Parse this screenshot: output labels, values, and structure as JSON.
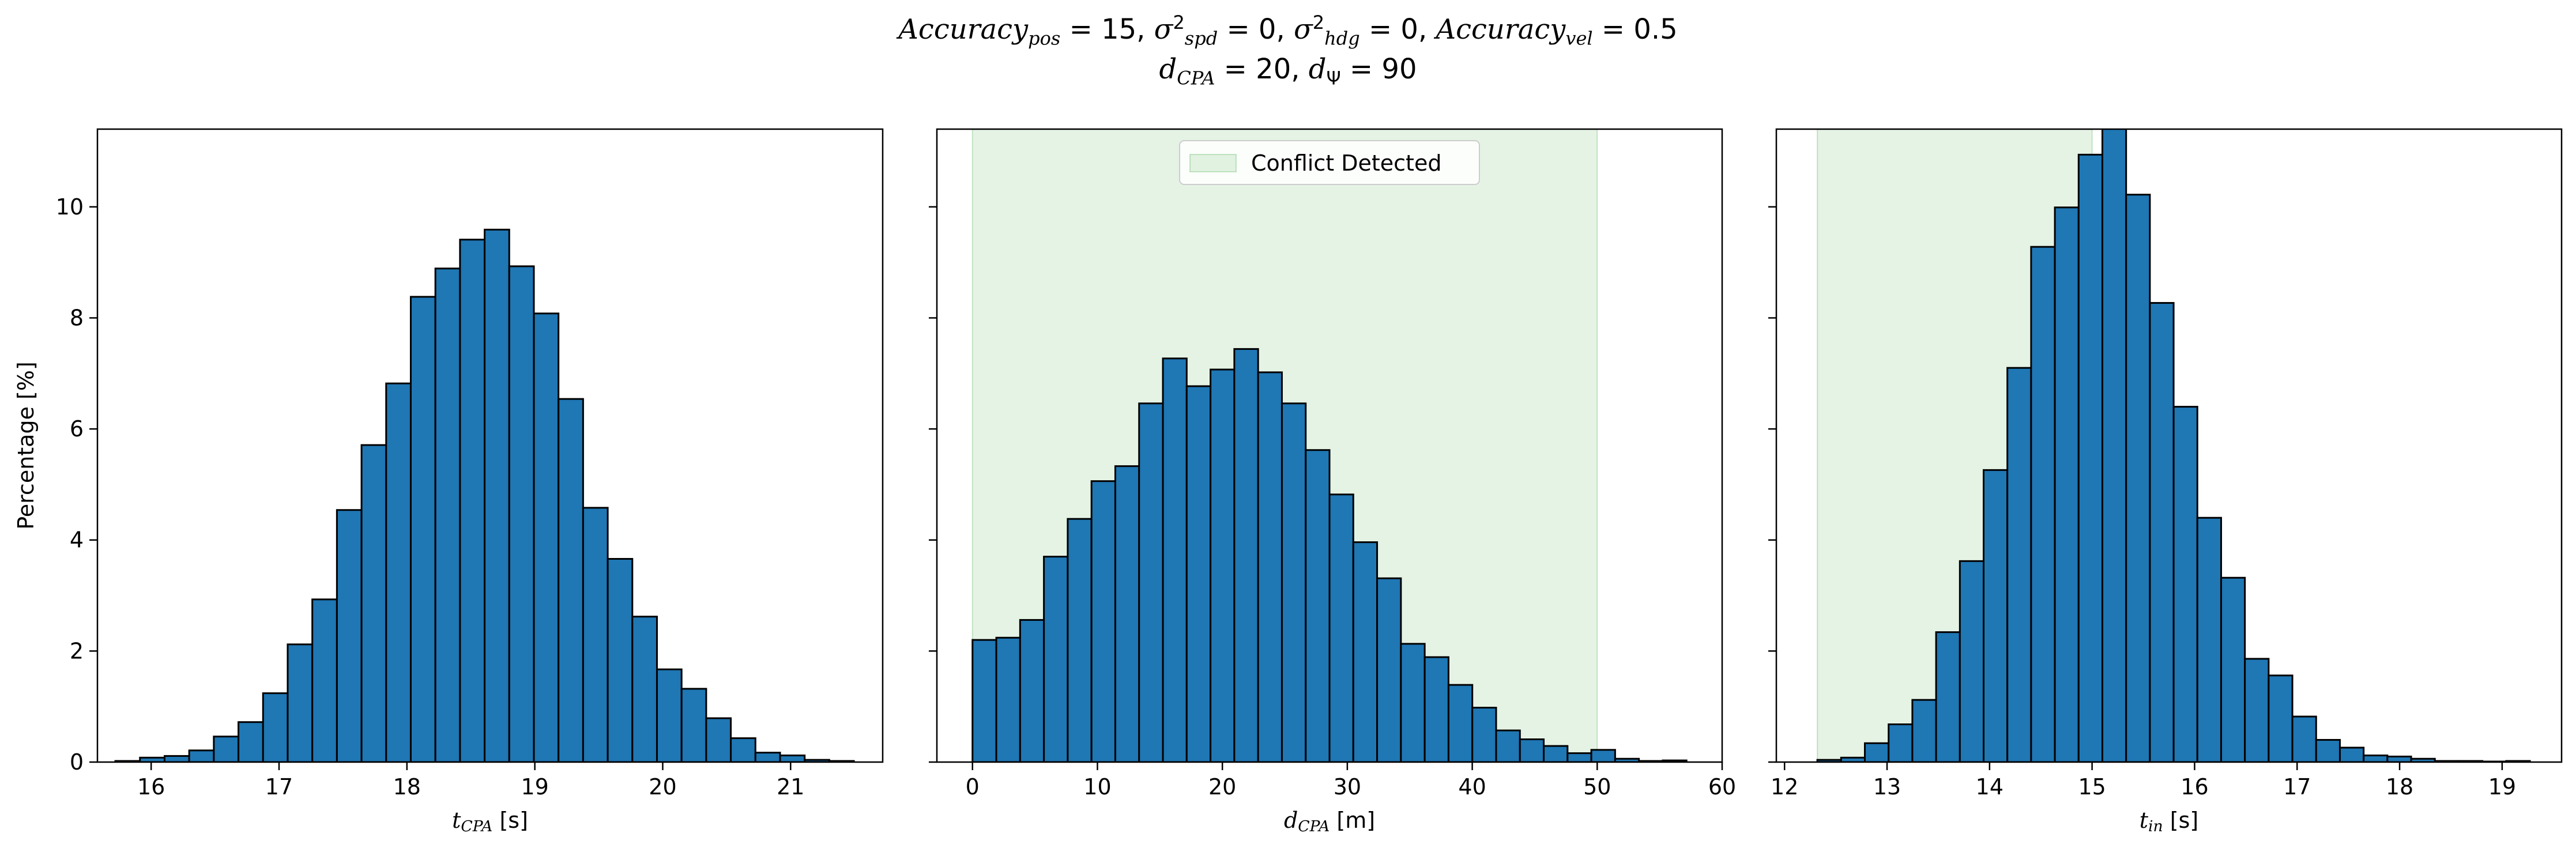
{
  "title": {
    "line1_parts": [
      {
        "t": "Accuracy",
        "i": true
      },
      {
        "t": "pos",
        "sub": true,
        "i": true
      },
      {
        "t": " = 15, "
      },
      {
        "t": "σ",
        "i": true
      },
      {
        "t": "2",
        "sup": true
      },
      {
        "t": "spd",
        "sub": true,
        "i": true
      },
      {
        "t": " = 0, "
      },
      {
        "t": "σ",
        "i": true
      },
      {
        "t": "2",
        "sup": true
      },
      {
        "t": "hdg",
        "sub": true,
        "i": true
      },
      {
        "t": " = 0, "
      },
      {
        "t": "Accuracy",
        "i": true
      },
      {
        "t": "vel",
        "sub": true,
        "i": true
      },
      {
        "t": " = 0.5"
      }
    ],
    "line2_parts": [
      {
        "t": "d",
        "i": true
      },
      {
        "t": "CPA",
        "sub": true,
        "i": true
      },
      {
        "t": " = 20, "
      },
      {
        "t": "d",
        "i": true
      },
      {
        "t": "Ψ",
        "sub": true
      },
      {
        "t": " = 90"
      }
    ]
  },
  "colors": {
    "bar": "#1f77b4",
    "bar_edge": "#000000",
    "conflict_fill": "#2ca02c",
    "conflict_alpha": 0.12
  },
  "chart_data": [
    {
      "type": "bar",
      "subtype": "histogram",
      "xlabel_parts": [
        {
          "t": "t",
          "i": true
        },
        {
          "t": "CPA",
          "sub": true,
          "i": true
        },
        {
          "t": " [s]"
        }
      ],
      "ylabel": "Percentage [%]",
      "xlim": [
        15.58,
        21.72
      ],
      "ylim": [
        0,
        11.4
      ],
      "xticks": [
        16,
        17,
        18,
        19,
        20,
        21
      ],
      "yticks": [
        0,
        2,
        4,
        6,
        8,
        10
      ],
      "bin_start": 15.72,
      "bin_width": 0.1925,
      "values": [
        0.02,
        0.08,
        0.11,
        0.21,
        0.46,
        0.72,
        1.24,
        2.12,
        2.93,
        4.54,
        5.71,
        6.82,
        8.38,
        8.89,
        9.41,
        9.59,
        8.93,
        8.08,
        6.54,
        4.58,
        3.66,
        2.62,
        1.67,
        1.32,
        0.79,
        0.43,
        0.17,
        0.12,
        0.04,
        0.02
      ],
      "shade": null
    },
    {
      "type": "bar",
      "subtype": "histogram",
      "xlabel_parts": [
        {
          "t": "d",
          "i": true
        },
        {
          "t": "CPA",
          "sub": true,
          "i": true
        },
        {
          "t": " [m]"
        }
      ],
      "ylabel": "",
      "xlim": [
        -2.85,
        60.0
      ],
      "ylim": [
        0,
        11.4
      ],
      "xticks": [
        0,
        10,
        20,
        30,
        40,
        50,
        60
      ],
      "yticks": [
        0,
        2,
        4,
        6,
        8,
        10
      ],
      "bin_start": 0.0,
      "bin_width": 1.905,
      "values": [
        2.2,
        2.24,
        2.56,
        3.7,
        4.38,
        5.06,
        5.33,
        6.46,
        7.27,
        6.77,
        7.07,
        7.44,
        7.02,
        6.46,
        5.62,
        4.82,
        3.96,
        3.31,
        2.13,
        1.89,
        1.39,
        0.98,
        0.57,
        0.41,
        0.29,
        0.16,
        0.22,
        0.06,
        0.02,
        0.03
      ],
      "shade": [
        0,
        50
      ],
      "legend_label": "Conflict Detected",
      "legend_loc": "upper center"
    },
    {
      "type": "bar",
      "subtype": "histogram",
      "xlabel_parts": [
        {
          "t": "t",
          "i": true
        },
        {
          "t": "in",
          "sub": true,
          "i": true
        },
        {
          "t": " [s]"
        }
      ],
      "ylabel": "",
      "xlim": [
        11.92,
        19.58
      ],
      "ylim": [
        0,
        11.4
      ],
      "xticks": [
        12,
        13,
        14,
        15,
        16,
        17,
        18,
        19
      ],
      "yticks": [
        0,
        2,
        4,
        6,
        8,
        10
      ],
      "bin_start": 12.32,
      "bin_width": 0.2317,
      "values": [
        0.04,
        0.08,
        0.34,
        0.68,
        1.12,
        2.34,
        3.62,
        5.26,
        7.1,
        9.28,
        9.99,
        10.94,
        11.5,
        10.22,
        8.27,
        6.4,
        4.4,
        3.32,
        1.86,
        1.56,
        0.82,
        0.4,
        0.26,
        0.12,
        0.1,
        0.06,
        0.02,
        0.02,
        0.01,
        0.02
      ],
      "shade": [
        12.32,
        15.0
      ]
    }
  ]
}
